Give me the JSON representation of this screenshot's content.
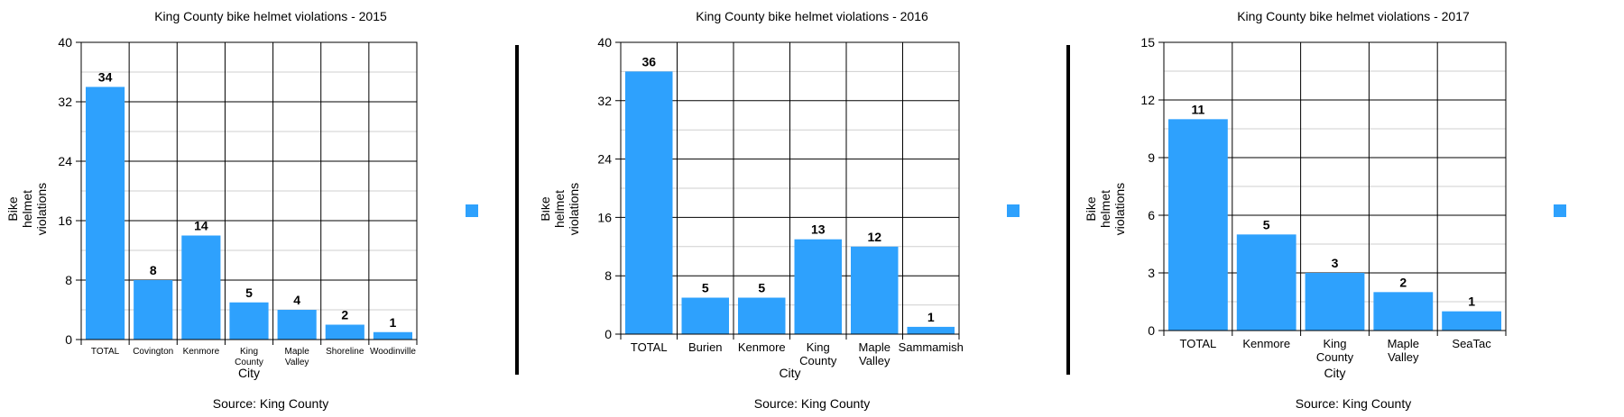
{
  "accent_color": "#2ea1fd",
  "chart_data": [
    {
      "type": "bar",
      "title": "King County bike helmet violations - 2015",
      "xlabel": "City",
      "ylabel": [
        "Bike",
        "helmet",
        "violations"
      ],
      "source": "Source: King County",
      "ylim": [
        0,
        40
      ],
      "yticks": [
        0,
        8,
        16,
        24,
        32,
        40
      ],
      "minor_step": 4,
      "categories": [
        [
          "TOTAL"
        ],
        [
          "Covington"
        ],
        [
          "Kenmore"
        ],
        [
          "King",
          "County"
        ],
        [
          "Maple",
          "Valley"
        ],
        [
          "Shoreline"
        ],
        [
          "Woodinville"
        ]
      ],
      "values": [
        34,
        8,
        14,
        5,
        4,
        2,
        1
      ],
      "tick_font": 10,
      "grid": true
    },
    {
      "type": "bar",
      "title": "King County bike helmet violations - 2016",
      "xlabel": "City",
      "ylabel": [
        "Bike",
        "helmet",
        "violations"
      ],
      "source": "Source: King County",
      "ylim": [
        0,
        40
      ],
      "yticks": [
        0,
        8,
        16,
        24,
        32,
        40
      ],
      "minor_step": 4,
      "categories": [
        [
          "TOTAL"
        ],
        [
          "Burien"
        ],
        [
          "Kenmore"
        ],
        [
          "King",
          "County"
        ],
        [
          "Maple",
          "Valley"
        ],
        [
          "Sammamish"
        ]
      ],
      "values": [
        36,
        5,
        5,
        13,
        12,
        1
      ],
      "tick_font": 13,
      "grid": true
    },
    {
      "type": "bar",
      "title": "King County bike helmet violations - 2017",
      "xlabel": "City",
      "ylabel": [
        "Bike",
        "helmet",
        "violations"
      ],
      "source": "Source: King County",
      "ylim": [
        0,
        15
      ],
      "yticks": [
        0,
        3,
        6,
        9,
        12,
        15
      ],
      "minor_step": 1.5,
      "categories": [
        [
          "TOTAL"
        ],
        [
          "Kenmore"
        ],
        [
          "King",
          "County"
        ],
        [
          "Maple",
          "Valley"
        ],
        [
          "SeaTac"
        ]
      ],
      "values": [
        11,
        5,
        3,
        2,
        1
      ],
      "tick_font": 13,
      "grid": true
    }
  ]
}
